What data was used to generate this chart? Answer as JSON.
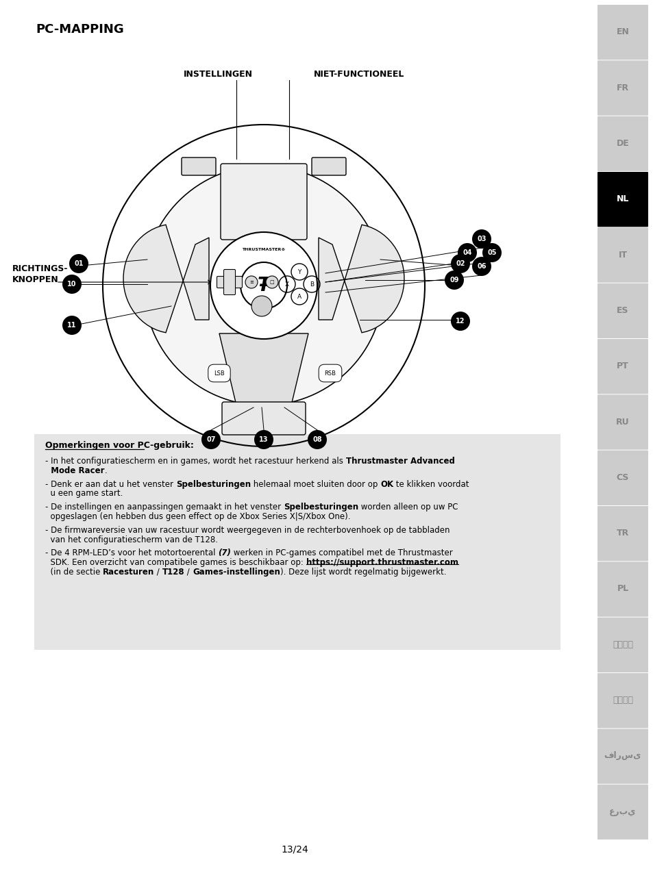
{
  "title": "PC-MAPPING",
  "bg_color": "#ffffff",
  "sidebar_langs": [
    "EN",
    "FR",
    "DE",
    "NL",
    "IT",
    "ES",
    "PT",
    "RU",
    "CS",
    "TR",
    "PL",
    "简体中文",
    "繁體中文",
    "فارسی",
    "عربي"
  ],
  "active_lang": "NL",
  "header_labels": [
    "INSTELLINGEN",
    "NIET-FUNCTIONEEL"
  ],
  "left_label_1": "RICHTINGS-",
  "left_label_2": "KNOPPEN",
  "notes_title": "Opmerkingen voor PC-gebruik:",
  "page_label": "13/24",
  "notes_bg": "#e5e5e5"
}
